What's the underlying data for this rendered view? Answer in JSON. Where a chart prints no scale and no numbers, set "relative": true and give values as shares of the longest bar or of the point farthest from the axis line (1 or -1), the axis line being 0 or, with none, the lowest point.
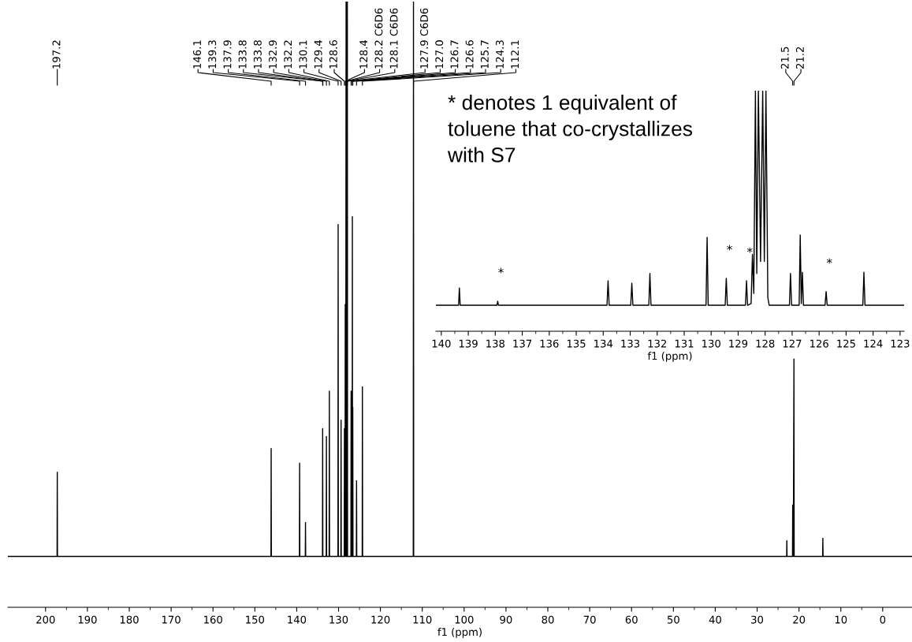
{
  "chart_data": [
    {
      "type": "line",
      "relative": true,
      "tick_labels": "x",
      "grid": false,
      "legend": false,
      "marker": "none",
      "line_style": "solid",
      "color": "#000000",
      "xlabel": "f1 (ppm)",
      "xlim": [
        209,
        -7
      ],
      "xticks": [
        200,
        190,
        180,
        170,
        160,
        150,
        140,
        130,
        120,
        110,
        100,
        90,
        80,
        70,
        60,
        50,
        40,
        30,
        20,
        10,
        0
      ],
      "x": [
        209,
        197.25,
        197.2,
        197.15,
        146.15,
        146.1,
        146.05,
        139.35,
        139.3,
        139.25,
        137.95,
        137.9,
        137.85,
        133.85,
        133.8,
        133.75,
        132.95,
        132.9,
        132.85,
        132.25,
        132.2,
        132.15,
        130.15,
        130.1,
        130.05,
        129.45,
        129.4,
        129.35,
        128.65,
        128.6,
        128.55,
        128.45,
        128.4,
        128.3,
        128.2,
        128.15,
        128.1,
        128.0,
        127.9,
        127.85,
        127.05,
        127.0,
        126.95,
        126.75,
        126.7,
        126.65,
        126.6,
        126.55,
        125.75,
        125.7,
        125.65,
        124.35,
        124.3,
        124.25,
        112.15,
        112.1,
        112.05,
        22.95,
        22.9,
        22.85,
        21.55,
        21.5,
        21.35,
        21.2,
        21.15,
        14.35,
        14.3,
        14.25,
        -7
      ],
      "values": [
        0.084,
        0.084,
        0.223,
        0.084,
        0.084,
        0.262,
        0.084,
        0.084,
        0.238,
        0.084,
        0.084,
        0.14,
        0.084,
        0.084,
        0.295,
        0.084,
        0.084,
        0.282,
        0.084,
        0.084,
        0.357,
        0.084,
        0.084,
        0.632,
        0.084,
        0.084,
        0.309,
        0.084,
        0.084,
        0.295,
        0.084,
        0.084,
        0.5,
        0.084,
        1,
        0.084,
        1,
        0.084,
        1,
        0.084,
        0.084,
        0.357,
        0.084,
        0.084,
        0.645,
        0.084,
        0.33,
        0.084,
        0.084,
        0.209,
        0.084,
        0.084,
        0.364,
        0.084,
        0.084,
        1,
        0.084,
        0.084,
        0.11,
        0.084,
        0.084,
        0.169,
        0.084,
        0.41,
        0.084,
        0.084,
        0.114,
        0.084,
        0.084
      ],
      "annotations": [
        {
          "text": "197.2",
          "x": 197.2
        },
        {
          "text": "146.1",
          "x": 146.1
        },
        {
          "text": "139.3",
          "x": 139.3
        },
        {
          "text": "137.9",
          "x": 137.9
        },
        {
          "text": "133.8",
          "x": 133.8
        },
        {
          "text": "133.8",
          "x": 133.75
        },
        {
          "text": "132.9",
          "x": 132.9
        },
        {
          "text": "132.2",
          "x": 132.2
        },
        {
          "text": "130.1",
          "x": 130.1
        },
        {
          "text": "129.4",
          "x": 129.4
        },
        {
          "text": "128.6",
          "x": 128.6
        },
        {
          "text": "128.4",
          "x": 128.4
        },
        {
          "text": "128.2 C6D6",
          "x": 128.2
        },
        {
          "text": "128.1 C6D6",
          "x": 128.1
        },
        {
          "text": "127.9 C6D6",
          "x": 127.9
        },
        {
          "text": "127.0",
          "x": 127.0
        },
        {
          "text": "126.7",
          "x": 126.7
        },
        {
          "text": "126.6",
          "x": 126.6
        },
        {
          "text": "125.7",
          "x": 125.7
        },
        {
          "text": "124.3",
          "x": 124.3
        },
        {
          "text": "112.1",
          "x": 112.1
        },
        {
          "text": "21.5",
          "x": 21.5
        },
        {
          "text": "21.2",
          "x": 21.2
        },
        "* denotes 1 equivalent of\ntoluene that co-crystallizes\nwith S7"
      ]
    },
    {
      "type": "line",
      "relative": true,
      "tick_labels": "x",
      "grid": false,
      "legend": false,
      "marker": "none",
      "line_style": "solid",
      "color": "#000000",
      "xlabel": "f1 (ppm)",
      "xlim": [
        140.2,
        122.85
      ],
      "xticks": [
        140,
        139,
        138,
        137,
        136,
        135,
        134,
        133,
        132,
        131,
        130,
        129,
        128,
        127,
        126,
        125,
        124,
        123
      ],
      "x": [
        140.2,
        139.36,
        139.33,
        139.3,
        137.94,
        137.91,
        137.88,
        133.86,
        133.82,
        133.78,
        132.98,
        132.94,
        132.9,
        132.31,
        132.27,
        132.23,
        130.19,
        130.15,
        130.11,
        129.48,
        129.44,
        129.4,
        128.73,
        128.69,
        128.65,
        128.52,
        128.47,
        128.42,
        128.36,
        128.31,
        128.25,
        128.17,
        128.09,
        128.03,
        127.97,
        127.9,
        127.85,
        127.1,
        127.06,
        127.02,
        126.74,
        126.7,
        126.66,
        126.62,
        126.58,
        125.78,
        125.74,
        125.7,
        124.38,
        124.34,
        124.3,
        122.85
      ],
      "values": [
        0.108,
        0.108,
        0.18,
        0.108,
        0.108,
        0.125,
        0.108,
        0.108,
        0.21,
        0.108,
        0.108,
        0.2,
        0.108,
        0.108,
        0.24,
        0.108,
        0.108,
        0.39,
        0.108,
        0.108,
        0.22,
        0.108,
        0.108,
        0.21,
        0.108,
        0.115,
        0.32,
        0.157,
        1,
        0.24,
        1,
        0.29,
        1,
        0.29,
        1,
        0.14,
        0.108,
        0.108,
        0.24,
        0.108,
        0.108,
        0.4,
        0.115,
        0.245,
        0.108,
        0.108,
        0.165,
        0.108,
        0.108,
        0.245,
        0.108,
        0.108
      ],
      "annotations": [
        {
          "text": "*",
          "x": 137.91,
          "y": 0.125
        },
        {
          "text": "*",
          "x": 129.44,
          "y": 0.22
        },
        {
          "text": "*",
          "x": 128.69,
          "y": 0.21
        },
        {
          "text": "*",
          "x": 125.74,
          "y": 0.165
        }
      ]
    }
  ]
}
